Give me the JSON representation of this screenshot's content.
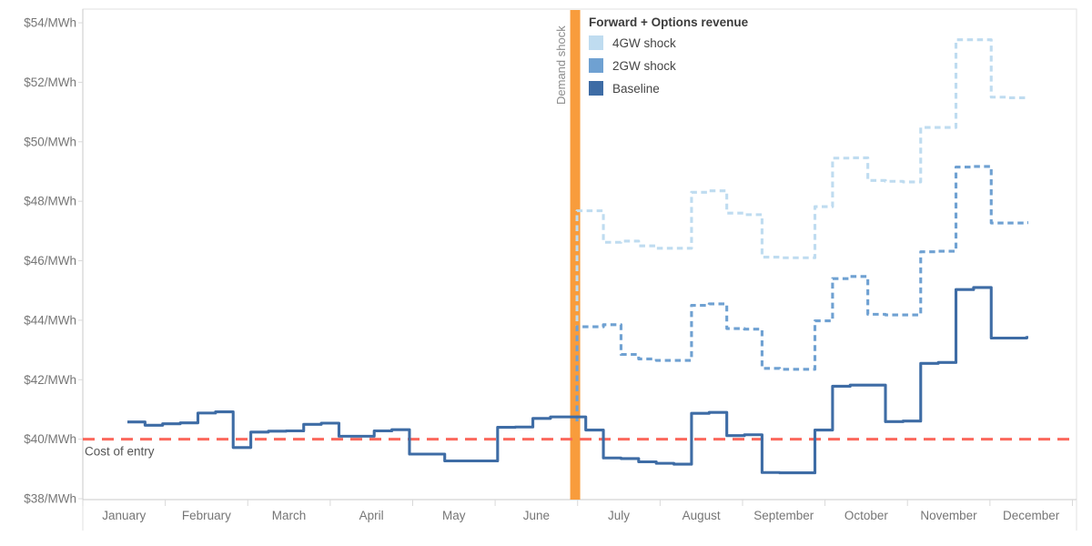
{
  "chart_data": {
    "type": "line",
    "title": "Forward + Options revenue",
    "ylabel_format": "$N/MWh",
    "ylim": [
      37.97,
      54.46
    ],
    "y_ticks": [
      {
        "value": 54,
        "label": "$54/MWh"
      },
      {
        "value": 52,
        "label": "$52/MWh"
      },
      {
        "value": 50,
        "label": "$50/MWh"
      },
      {
        "value": 48,
        "label": "$48/MWh"
      },
      {
        "value": 46,
        "label": "$46/MWh"
      },
      {
        "value": 44,
        "label": "$44/MWh"
      },
      {
        "value": 42,
        "label": "$42/MWh"
      },
      {
        "value": 40,
        "label": "$40/MWh"
      },
      {
        "value": 38,
        "label": "$38/MWh"
      }
    ],
    "x_months": [
      "January",
      "February",
      "March",
      "April",
      "May",
      "June",
      "July",
      "August",
      "September",
      "October",
      "November",
      "December",
      "January"
    ],
    "x_unit": "week",
    "weeks_total": 52,
    "series": [
      {
        "name": "4GW shock",
        "color": "#bfdcf0",
        "dashed": true,
        "start_week": 26,
        "connects_from_value": 40.6,
        "values": [
          47.68,
          46.62,
          46.66,
          46.5,
          46.42,
          46.42,
          48.3,
          48.35,
          47.6,
          47.55,
          46.12,
          46.1,
          46.1,
          47.82,
          49.45,
          49.46,
          48.7,
          48.67,
          48.65,
          50.48,
          50.48,
          53.43,
          53.43,
          51.5,
          51.48,
          51.48
        ]
      },
      {
        "name": "2GW shock",
        "color": "#6fa1d2",
        "dashed": true,
        "start_week": 26,
        "connects_from_value": 40.6,
        "values": [
          43.78,
          43.85,
          42.85,
          42.7,
          42.65,
          42.65,
          44.5,
          44.55,
          43.72,
          43.7,
          42.38,
          42.35,
          42.35,
          43.98,
          45.4,
          45.47,
          44.2,
          44.18,
          44.18,
          46.3,
          46.32,
          49.15,
          49.17,
          47.27,
          47.27,
          47.28
        ]
      },
      {
        "name": "Baseline",
        "color": "#3e6ca5",
        "dashed": false,
        "start_week": 0,
        "values": [
          40.58,
          40.47,
          40.52,
          40.55,
          40.88,
          40.92,
          39.72,
          40.24,
          40.27,
          40.28,
          40.5,
          40.54,
          40.1,
          40.1,
          40.28,
          40.32,
          39.5,
          39.5,
          39.27,
          39.27,
          39.27,
          40.4,
          40.41,
          40.7,
          40.75,
          40.75,
          40.31,
          39.37,
          39.35,
          39.24,
          39.19,
          39.16,
          40.87,
          40.9,
          40.12,
          40.15,
          38.88,
          38.87,
          38.87,
          40.31,
          41.78,
          41.82,
          41.82,
          40.59,
          40.61,
          42.55,
          42.58,
          45.03,
          45.1,
          43.4,
          43.4,
          43.42
        ]
      }
    ],
    "annotations": {
      "demand_shock": {
        "label": "Demand shock",
        "week": 25.4,
        "color": "#f89c3c"
      },
      "cost_of_entry": {
        "label": "Cost of entry",
        "value": 40,
        "color": "#fb685c"
      }
    },
    "grid": false,
    "legend_position": "top-center-inside"
  },
  "legend": {
    "title": "Forward + Options revenue",
    "items": [
      {
        "label": "4GW shock",
        "color": "#bfdcf0"
      },
      {
        "label": "2GW shock",
        "color": "#6fa1d2"
      },
      {
        "label": "Baseline",
        "color": "#3e6ca5"
      }
    ]
  },
  "colors": {
    "axis_text": "#767676",
    "axis_line": "#c9c9c9",
    "border": "#e2e2e2",
    "tick": "#d9d9d9",
    "shock_bar": "#f89c3c",
    "entry_line": "#fb685c",
    "shock_label_text": "#8c8c8c",
    "entry_label_text": "#565656"
  }
}
